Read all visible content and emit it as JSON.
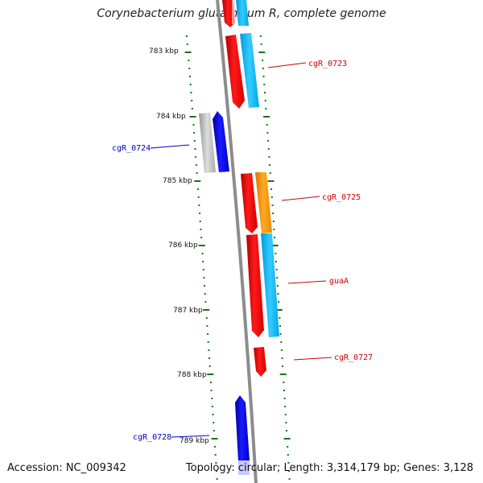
{
  "header": {
    "title": "Corynebacterium glutamicum R, complete genome"
  },
  "footer": {
    "accession": "Accession: NC_009342",
    "topology": "Topology: circular; Length: 3,314,179 bp; Genes: 3,128"
  },
  "map": {
    "ticks": [
      "783 kbp",
      "784 kbp",
      "785 kbp",
      "786 kbp",
      "787 kbp",
      "788 kbp",
      "789 kbp"
    ],
    "colors": {
      "forward_gene": "#ff0000",
      "reverse_gene": "#0000ff",
      "forward_label": "#cc0000",
      "reverse_label": "#0000bb",
      "cds_cyan": "#00c0ff",
      "cds_orange": "#ff9900",
      "cds_grey": "#b8b8b8",
      "backbone": "#8c8c8c",
      "tick_green": "#117711"
    },
    "genes": [
      {
        "label": "cgR_0723",
        "strand": "forward"
      },
      {
        "label": "cgR_0724",
        "strand": "reverse"
      },
      {
        "label": "cgR_0725",
        "strand": "forward"
      },
      {
        "label": "guaA",
        "strand": "forward"
      },
      {
        "label": "cgR_0727",
        "strand": "forward"
      },
      {
        "label": "cgR_0728",
        "strand": "reverse"
      }
    ]
  }
}
